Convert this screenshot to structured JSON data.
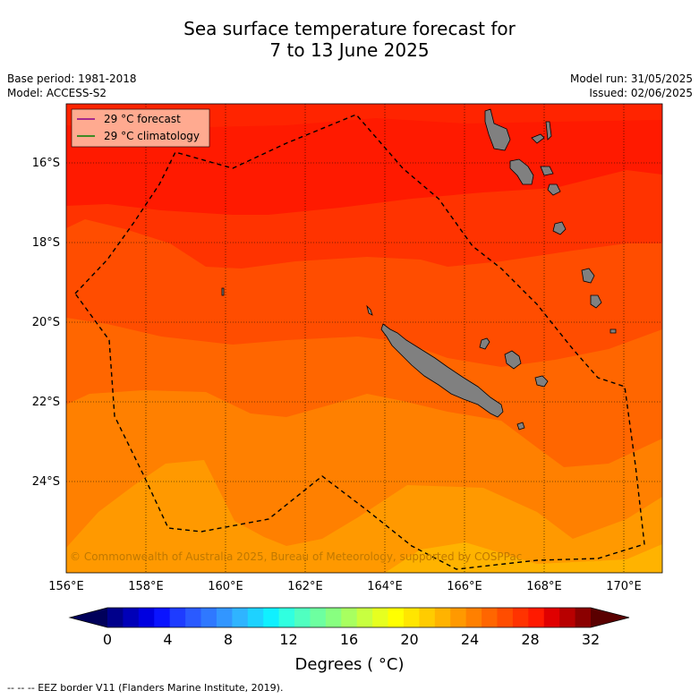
{
  "title_line1": "Sea surface temperature forecast for",
  "title_line2": "7 to 13 June 2025",
  "base_period": "Base period: 1981-2018",
  "model": "Model: ACCESS-S2",
  "model_run": "Model run: 31/05/2025",
  "issued": "Issued: 02/06/2025",
  "legend": {
    "forecast_label": "29 °C  forecast",
    "forecast_color": "#8b008b",
    "climatology_label": "29 °C  climatology",
    "climatology_color": "#008000"
  },
  "lat_labels": [
    "16°S",
    "18°S",
    "20°S",
    "22°S",
    "24°S"
  ],
  "lon_labels": [
    "156°E",
    "158°E",
    "160°E",
    "162°E",
    "164°E",
    "166°E",
    "168°E",
    "170°E"
  ],
  "copyright": "© Commonwealth of Australia 2025, Bureau of Meteorology, supported by COSPPac",
  "colorbar": {
    "ticks": [
      "0",
      "4",
      "8",
      "12",
      "16",
      "20",
      "24",
      "28",
      "32"
    ],
    "label": "Degrees ( °C)",
    "colors": [
      "#00008b",
      "#0000b8",
      "#0000e0",
      "#0a14ff",
      "#1e3cff",
      "#2a5aff",
      "#2f78ff",
      "#3296ff",
      "#2fb4ff",
      "#1ed2ff",
      "#10f0ff",
      "#30ffe0",
      "#50ffc0",
      "#6dffa0",
      "#88ff80",
      "#a8ff60",
      "#c8ff40",
      "#e6ff20",
      "#ffff00",
      "#ffe600",
      "#ffcc00",
      "#ffb300",
      "#ff9900",
      "#ff8000",
      "#ff6600",
      "#ff4d00",
      "#ff3300",
      "#ff1a00",
      "#e00000",
      "#b80000",
      "#8b0000"
    ],
    "low_color": "#00005a",
    "high_color": "#5a0000"
  },
  "footer": "--  --  -- EEZ border V11 (Flanders Marine Institute, 2019)."
}
